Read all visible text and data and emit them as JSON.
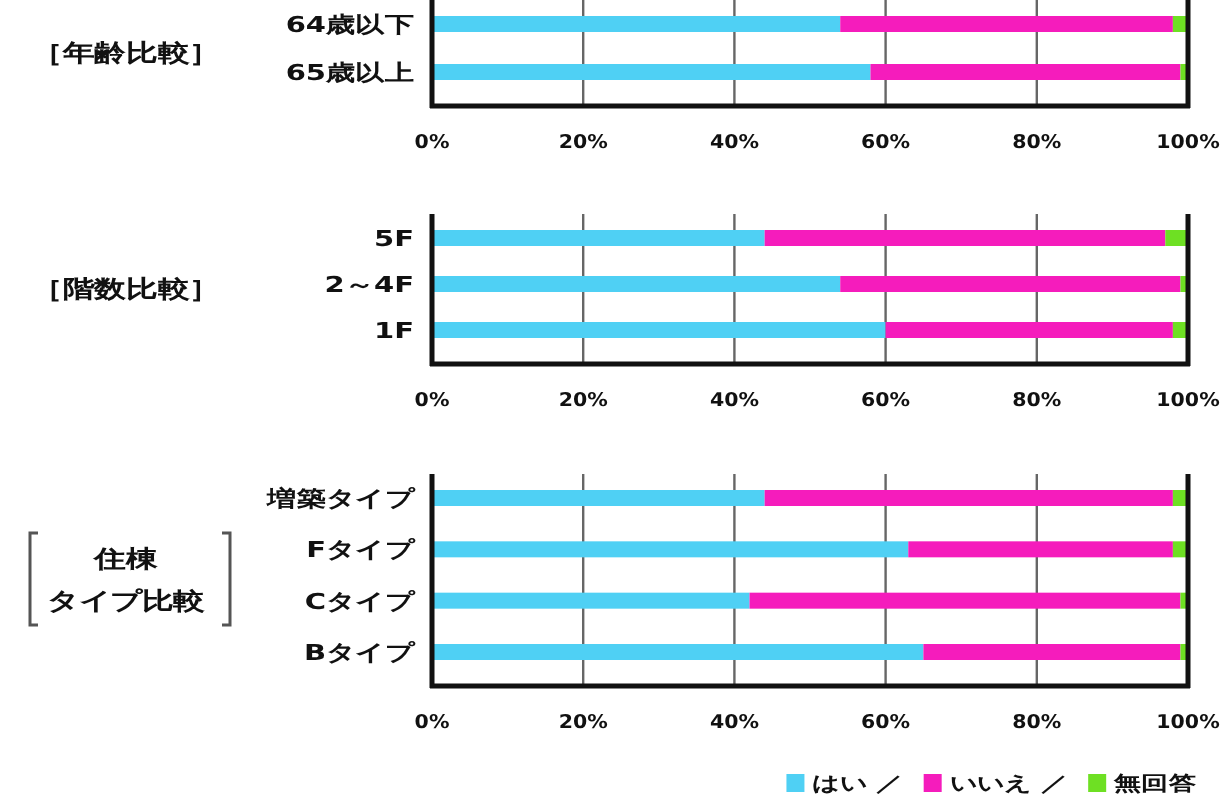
{
  "chart_data": [
    {
      "type": "bar",
      "orientation": "horizontal",
      "stacked": true,
      "ylabel": "［年齢比較］",
      "categories": [
        "64歳以下",
        "65歳以上"
      ],
      "series": [
        {
          "color": "#4fd0f4",
          "values": [
            54,
            58
          ]
        },
        {
          "color": "#f51cbc",
          "values": [
            44,
            41
          ]
        },
        {
          "color": "#6ee023",
          "values": [
            2,
            1
          ]
        }
      ],
      "xlim": [
        0,
        100
      ],
      "xticks": [
        {
          "value": 0,
          "label": "0%"
        },
        {
          "value": 20,
          "label": "20%"
        },
        {
          "value": 40,
          "label": "40%"
        },
        {
          "value": 60,
          "label": "60%"
        },
        {
          "value": 80,
          "label": "80%"
        },
        {
          "value": 100,
          "label": "100%"
        }
      ],
      "grid": "x",
      "legend": false
    },
    {
      "type": "bar",
      "orientation": "horizontal",
      "stacked": true,
      "ylabel": "［階数比較］",
      "categories": [
        "5F",
        "2～4F",
        "1F"
      ],
      "series": [
        {
          "color": "#4fd0f4",
          "values": [
            44,
            54,
            60
          ]
        },
        {
          "color": "#f51cbc",
          "values": [
            53,
            45,
            38
          ]
        },
        {
          "color": "#6ee023",
          "values": [
            3,
            1,
            2
          ]
        }
      ],
      "xlim": [
        0,
        100
      ],
      "xticks": [
        {
          "value": 0,
          "label": "0%"
        },
        {
          "value": 20,
          "label": "20%"
        },
        {
          "value": 40,
          "label": "40%"
        },
        {
          "value": 60,
          "label": "60%"
        },
        {
          "value": 80,
          "label": "80%"
        },
        {
          "value": 100,
          "label": "100%"
        }
      ],
      "grid": "x",
      "legend": false
    },
    {
      "type": "bar",
      "orientation": "horizontal",
      "stacked": true,
      "ylabel": "住棟タイプ比較",
      "categories": [
        "増築タイプ",
        "Fタイプ",
        "Cタイプ",
        "Bタイプ"
      ],
      "series": [
        {
          "name": "はい ／",
          "color": "#4fd0f4",
          "values": [
            44,
            63,
            42,
            65
          ]
        },
        {
          "name": "いいえ ／",
          "color": "#f51cbc",
          "values": [
            54,
            35,
            57,
            34
          ]
        },
        {
          "name": "無回答",
          "color": "#6ee023",
          "values": [
            2,
            2,
            1,
            1
          ]
        }
      ],
      "xlim": [
        0,
        100
      ],
      "xticks": [
        {
          "value": 0,
          "label": "0%"
        },
        {
          "value": 20,
          "label": "20%"
        },
        {
          "value": 40,
          "label": "40%"
        },
        {
          "value": 60,
          "label": "60%"
        },
        {
          "value": 80,
          "label": "80%"
        },
        {
          "value": 100,
          "label": "100%"
        }
      ],
      "grid": "x",
      "legend": "bottom right"
    }
  ]
}
